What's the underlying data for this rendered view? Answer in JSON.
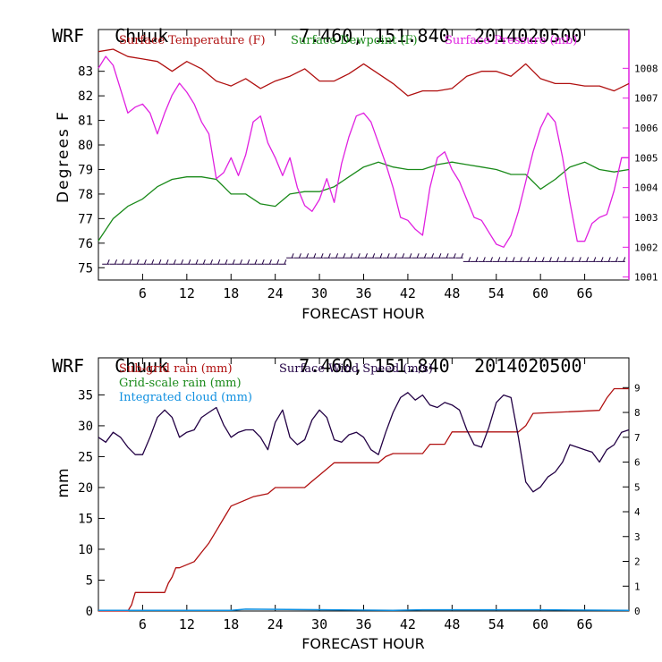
{
  "top": {
    "model": "WRF",
    "station": "Chuuk",
    "coords": "7.460, 151.840",
    "init": "2014020500",
    "ylabel": "Degrees F",
    "xlabel": "FORECAST HOUR",
    "legend": {
      "temp": "Surface Temperature (F)",
      "dew": "Surface Dewpoint (F)",
      "pres": "Surface Pressure (mb)"
    }
  },
  "bottom": {
    "model": "WRF",
    "station": "Chuuk",
    "coords": "7.460, 151.840",
    "init": "2014020500",
    "ylabel": "mm",
    "xlabel": "FORECAST HOUR",
    "legend": {
      "subgrid": "Sub-grid rain (mm)",
      "wind": "Surface Wind Speed (m/s)",
      "gridscale": "Grid-scale rain (mm)",
      "cloud": "Integrated cloud (mm)"
    }
  },
  "colors": {
    "temp": "#b01010",
    "dew": "#1a8a1a",
    "pres": "#e020e0",
    "wind": "#220044",
    "subgrid": "#b01010",
    "cloud": "#1090e0",
    "axis_right": "#e020e0"
  },
  "chart_data": [
    {
      "type": "line",
      "x_ticks": [
        6,
        12,
        18,
        24,
        30,
        36,
        42,
        48,
        54,
        60,
        66
      ],
      "xlim": [
        0,
        72
      ],
      "ylim": [
        74.5,
        84.7
      ],
      "y_ticks": [
        75,
        76,
        77,
        78,
        79,
        80,
        81,
        82,
        83
      ],
      "y2lim": [
        1000.9,
        1009.3
      ],
      "y2_ticks": [
        1001,
        1002,
        1003,
        1004,
        1005,
        1006,
        1007,
        1008
      ],
      "series": [
        {
          "name": "Surface Temperature (F)",
          "axis": "left",
          "x": [
            0,
            2,
            4,
            6,
            8,
            10,
            12,
            14,
            16,
            18,
            20,
            22,
            24,
            26,
            28,
            30,
            32,
            34,
            36,
            38,
            40,
            42,
            44,
            46,
            48,
            50,
            52,
            54,
            56,
            58,
            60,
            62,
            64,
            66,
            68,
            70,
            72
          ],
          "y": [
            83.8,
            83.9,
            83.6,
            83.5,
            83.4,
            83.0,
            83.4,
            83.1,
            82.6,
            82.4,
            82.7,
            82.3,
            82.6,
            82.8,
            83.1,
            82.6,
            82.6,
            82.9,
            83.3,
            82.9,
            82.5,
            82.0,
            82.2,
            82.2,
            82.3,
            82.8,
            83.0,
            83.0,
            82.8,
            83.3,
            82.7,
            82.5,
            82.5,
            82.4,
            82.4,
            82.2,
            82.5
          ]
        },
        {
          "name": "Surface Dewpoint (F)",
          "axis": "left",
          "x": [
            0,
            2,
            4,
            6,
            8,
            10,
            12,
            14,
            16,
            18,
            20,
            22,
            24,
            26,
            28,
            30,
            32,
            34,
            36,
            38,
            40,
            42,
            44,
            46,
            48,
            50,
            52,
            54,
            56,
            58,
            60,
            62,
            64,
            66,
            68,
            70,
            72
          ],
          "y": [
            76.1,
            77.0,
            77.5,
            77.8,
            78.3,
            78.6,
            78.7,
            78.7,
            78.6,
            78.0,
            78.0,
            77.6,
            77.5,
            78.0,
            78.1,
            78.1,
            78.3,
            78.7,
            79.1,
            79.3,
            79.1,
            79.0,
            79.0,
            79.2,
            79.3,
            79.2,
            79.1,
            79.0,
            78.8,
            78.8,
            78.2,
            78.6,
            79.1,
            79.3,
            79.0,
            78.9,
            79.0
          ]
        },
        {
          "name": "Surface Pressure (mb)",
          "axis": "right",
          "x": [
            0,
            1,
            2,
            3,
            4,
            5,
            6,
            7,
            8,
            9,
            10,
            11,
            12,
            13,
            14,
            15,
            16,
            17,
            18,
            19,
            20,
            21,
            22,
            23,
            24,
            25,
            26,
            27,
            28,
            29,
            30,
            31,
            32,
            33,
            34,
            35,
            36,
            37,
            38,
            39,
            40,
            41,
            42,
            43,
            44,
            45,
            46,
            47,
            48,
            49,
            50,
            51,
            52,
            53,
            54,
            55,
            56,
            57,
            58,
            59,
            60,
            61,
            62,
            63,
            64,
            65,
            66,
            67,
            68,
            69,
            70,
            71,
            72
          ],
          "y": [
            1008.0,
            1008.4,
            1008.1,
            1007.3,
            1006.5,
            1006.7,
            1006.8,
            1006.5,
            1005.8,
            1006.5,
            1007.1,
            1007.5,
            1007.2,
            1006.8,
            1006.2,
            1005.8,
            1004.3,
            1004.5,
            1005.0,
            1004.4,
            1005.1,
            1006.2,
            1006.4,
            1005.5,
            1005.0,
            1004.4,
            1005.0,
            1004.0,
            1003.4,
            1003.2,
            1003.6,
            1004.3,
            1003.5,
            1004.8,
            1005.7,
            1006.4,
            1006.5,
            1006.2,
            1005.5,
            1004.8,
            1004.0,
            1003.0,
            1002.9,
            1002.6,
            1002.4,
            1004.0,
            1005.0,
            1005.2,
            1004.6,
            1004.2,
            1003.6,
            1003.0,
            1002.9,
            1002.5,
            1002.1,
            1002.0,
            1002.4,
            1003.2,
            1004.2,
            1005.2,
            1006.0,
            1006.5,
            1006.2,
            1005.0,
            1003.5,
            1002.2,
            1002.2,
            1002.8,
            1003.0,
            1003.1,
            1003.9,
            1005.0,
            1005.0
          ]
        }
      ]
    },
    {
      "type": "line",
      "x_ticks": [
        6,
        12,
        18,
        24,
        30,
        36,
        42,
        48,
        54,
        60,
        66
      ],
      "xlim": [
        0,
        72
      ],
      "ylim": [
        0,
        41
      ],
      "y_ticks": [
        0,
        5,
        10,
        15,
        20,
        25,
        30,
        35
      ],
      "y2lim": [
        0,
        10.2
      ],
      "y2_ticks": [
        0,
        1,
        2,
        3,
        4,
        5,
        6,
        7,
        8,
        9
      ],
      "series": [
        {
          "name": "Sub-grid rain (mm)",
          "axis": "left",
          "x": [
            0,
            4,
            4.5,
            5,
            9,
            9.5,
            10,
            10.5,
            11,
            13,
            14,
            15,
            16,
            17,
            18,
            20,
            21,
            23,
            24,
            28,
            29,
            30,
            31,
            32,
            38,
            39,
            40,
            44,
            45,
            47,
            48,
            57,
            58,
            59,
            68,
            69,
            70,
            72
          ],
          "y": [
            0,
            0,
            1,
            3,
            3,
            4.5,
            5.5,
            7,
            7,
            8,
            9.5,
            11,
            13,
            15,
            17,
            18,
            18.5,
            19,
            20,
            20,
            21,
            22,
            23,
            24,
            24,
            25,
            25.5,
            25.5,
            27,
            27,
            29,
            29,
            30,
            32,
            32.5,
            34.5,
            36,
            36
          ]
        },
        {
          "name": "Surface Wind Speed (m/s)",
          "axis": "right",
          "x": [
            0,
            1,
            2,
            3,
            4,
            5,
            6,
            7,
            8,
            9,
            10,
            11,
            12,
            13,
            14,
            15,
            16,
            17,
            18,
            19,
            20,
            21,
            22,
            23,
            24,
            25,
            26,
            27,
            28,
            29,
            30,
            31,
            32,
            33,
            34,
            35,
            36,
            37,
            38,
            39,
            40,
            41,
            42,
            43,
            44,
            45,
            46,
            47,
            48,
            49,
            50,
            51,
            52,
            53,
            54,
            55,
            56,
            57,
            58,
            59,
            60,
            61,
            62,
            63,
            64,
            65,
            66,
            67,
            68,
            69,
            70,
            71,
            72
          ],
          "y": [
            7.0,
            6.8,
            7.2,
            7.0,
            6.6,
            6.3,
            6.3,
            7.0,
            7.8,
            8.1,
            7.8,
            7.0,
            7.2,
            7.3,
            7.8,
            8.0,
            8.2,
            7.5,
            7.0,
            7.2,
            7.3,
            7.3,
            7.0,
            6.5,
            7.6,
            8.1,
            7.0,
            6.7,
            6.9,
            7.7,
            8.1,
            7.8,
            6.9,
            6.8,
            7.1,
            7.2,
            7.0,
            6.5,
            6.3,
            7.2,
            8.0,
            8.6,
            8.8,
            8.5,
            8.7,
            8.3,
            8.2,
            8.4,
            8.3,
            8.1,
            7.3,
            6.7,
            6.6,
            7.4,
            8.4,
            8.7,
            8.6,
            7.0,
            5.2,
            4.8,
            5.0,
            5.4,
            5.6,
            6.0,
            6.7,
            6.6,
            6.5,
            6.4,
            6.0,
            6.5,
            6.7,
            7.2,
            7.3
          ]
        },
        {
          "name": "Integrated cloud (mm)",
          "axis": "left",
          "x": [
            0,
            18,
            20,
            40,
            44,
            60,
            72
          ],
          "y": [
            0.1,
            0.1,
            0.3,
            0.1,
            0.2,
            0.2,
            0.1
          ]
        }
      ]
    }
  ]
}
